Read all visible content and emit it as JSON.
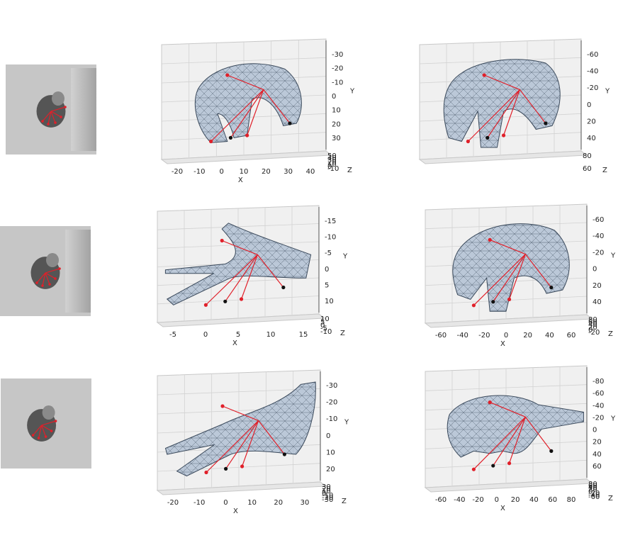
{
  "axis_names": {
    "x": "X",
    "y": "Y",
    "z": "Z"
  },
  "rows": [
    {
      "depth_image": {
        "name": "row1-depth-thumbnail"
      },
      "plots": [
        {
          "name": "row1-plot-left",
          "x_ticks": [
            "-20",
            "-10",
            "0",
            "10",
            "20",
            "30",
            "40"
          ],
          "y_ticks": [
            "-30",
            "-20",
            "-10",
            "0",
            "10",
            "20",
            "30"
          ],
          "z_ticks": [
            "50",
            "40",
            "30",
            "20",
            "10",
            "0",
            "-10"
          ]
        },
        {
          "name": "row1-plot-right",
          "x_ticks": [],
          "y_ticks": [
            "-60",
            "-40",
            "-20",
            "0",
            "20",
            "40"
          ],
          "z_ticks": [
            "80",
            "60"
          ]
        }
      ]
    },
    {
      "depth_image": {
        "name": "row2-depth-thumbnail"
      },
      "plots": [
        {
          "name": "row2-plot-left",
          "x_ticks": [
            "-5",
            "0",
            "5",
            "10",
            "15"
          ],
          "y_ticks": [
            "-15",
            "-10",
            "-5",
            "0",
            "5",
            "10"
          ],
          "z_ticks": [
            "10",
            "5",
            "0",
            "-5",
            "-10"
          ]
        },
        {
          "name": "row2-plot-right",
          "x_ticks": [
            "-60",
            "-40",
            "-20",
            "0",
            "20",
            "40",
            "60"
          ],
          "y_ticks": [
            "-60",
            "-40",
            "-20",
            "0",
            "20",
            "40"
          ],
          "z_ticks": [
            "80",
            "60",
            "40",
            "20",
            "0",
            "-20"
          ]
        }
      ]
    },
    {
      "depth_image": {
        "name": "row3-depth-thumbnail"
      },
      "plots": [
        {
          "name": "row3-plot-left",
          "x_ticks": [
            "-20",
            "-10",
            "0",
            "10",
            "20",
            "30"
          ],
          "y_ticks": [
            "-30",
            "-20",
            "-10",
            "0",
            "10",
            "20"
          ],
          "z_ticks": [
            "30",
            "20",
            "10",
            "0",
            "-10",
            "-20",
            "-30"
          ]
        },
        {
          "name": "row3-plot-right",
          "x_ticks": [
            "-60",
            "-40",
            "-20",
            "0",
            "20",
            "40",
            "60",
            "80"
          ],
          "y_ticks": [
            "-80",
            "-60",
            "-40",
            "-20",
            "0",
            "20",
            "40",
            "60"
          ],
          "z_ticks": [
            "80",
            "60",
            "40",
            "20",
            "0",
            "-20",
            "-40",
            "-60"
          ]
        }
      ]
    }
  ],
  "colors": {
    "mesh_fill": "#8fa8c4",
    "mesh_line": "#3b4a5c",
    "skeleton": "#e0202a",
    "joint_tip": "#111111",
    "pane": "#f0f0f0",
    "grid": "#d2d2d2",
    "thumb_bg": "#c6c6c6",
    "thumb_hand": "#555555"
  }
}
